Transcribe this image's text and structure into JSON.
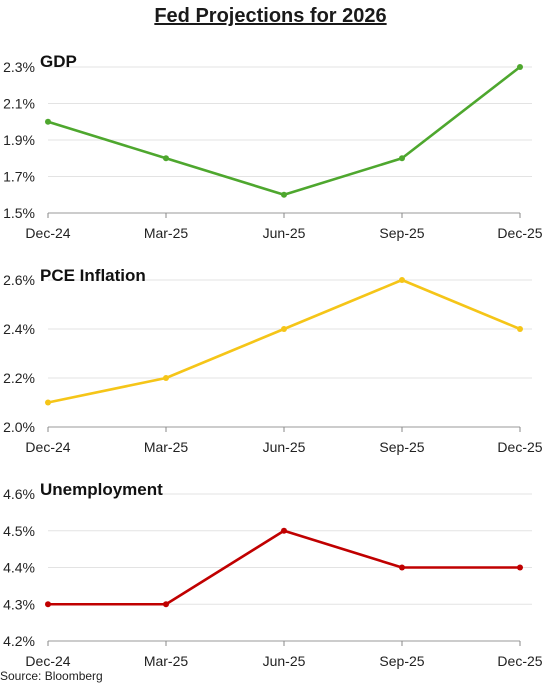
{
  "title": "Fed Projections for 2026",
  "source": "Source: Bloomberg",
  "chart_data": [
    {
      "type": "line",
      "title": "GDP",
      "categories": [
        "Dec-24",
        "Mar-25",
        "Jun-25",
        "Sep-25",
        "Dec-25"
      ],
      "values": [
        2.0,
        1.8,
        1.6,
        1.8,
        2.3
      ],
      "ylim": [
        1.5,
        2.3
      ],
      "yticks": [
        1.5,
        1.7,
        1.9,
        2.1,
        2.3
      ],
      "ytick_labels": [
        "1.5%",
        "1.7%",
        "1.9%",
        "2.1%",
        "2.3%"
      ],
      "color": "#4ea72e",
      "grid": true
    },
    {
      "type": "line",
      "title": "PCE Inflation",
      "categories": [
        "Dec-24",
        "Mar-25",
        "Jun-25",
        "Sep-25",
        "Dec-25"
      ],
      "values": [
        2.1,
        2.2,
        2.4,
        2.6,
        2.4
      ],
      "ylim": [
        2.0,
        2.6
      ],
      "yticks": [
        2.0,
        2.2,
        2.4,
        2.6
      ],
      "ytick_labels": [
        "2.0%",
        "2.2%",
        "2.4%",
        "2.6%"
      ],
      "color": "#f5c518",
      "grid": true
    },
    {
      "type": "line",
      "title": "Unemployment",
      "categories": [
        "Dec-24",
        "Mar-25",
        "Jun-25",
        "Sep-25",
        "Dec-25"
      ],
      "values": [
        4.3,
        4.3,
        4.5,
        4.4,
        4.4
      ],
      "ylim": [
        4.2,
        4.6
      ],
      "yticks": [
        4.2,
        4.3,
        4.4,
        4.5,
        4.6
      ],
      "ytick_labels": [
        "4.2%",
        "4.3%",
        "4.4%",
        "4.5%",
        "4.6%"
      ],
      "color": "#c00000",
      "grid": true
    }
  ]
}
